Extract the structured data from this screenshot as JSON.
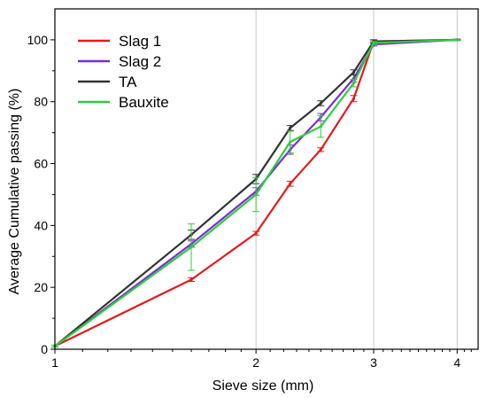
{
  "chart_data": {
    "type": "line",
    "xlabel": "Sieve size (mm)",
    "ylabel": "Average Cumulative passing (%)",
    "x_scale": "log",
    "xlim": [
      1,
      4.3
    ],
    "ylim": [
      0,
      110
    ],
    "x_ticks": [
      1,
      2,
      3,
      4
    ],
    "y_ticks": [
      0,
      20,
      40,
      60,
      80,
      100
    ],
    "vertical_gridlines_at": [
      2,
      3,
      4
    ],
    "legend_position": "top-left",
    "series": [
      {
        "name": "Slag 1",
        "color": "#e41a1c",
        "x": [
          1,
          1.6,
          2,
          2.25,
          2.5,
          2.8,
          3,
          4
        ],
        "y": [
          1,
          22.5,
          37.5,
          53.5,
          64.5,
          81,
          99.5,
          100
        ],
        "err": [
          0.3,
          0.6,
          0.6,
          0.8,
          0.6,
          1.0,
          0.5,
          0.2
        ]
      },
      {
        "name": "Slag 2",
        "color": "#7b2fcf",
        "x": [
          1,
          1.6,
          2,
          2.25,
          2.5,
          2.8,
          3,
          4
        ],
        "y": [
          1,
          34,
          51,
          64.5,
          75,
          87.5,
          98.5,
          100
        ],
        "err": [
          0.3,
          1.0,
          1.2,
          1.5,
          1.2,
          1.2,
          0.5,
          0.2
        ]
      },
      {
        "name": "TA",
        "color": "#333333",
        "x": [
          1,
          1.6,
          2,
          2.25,
          2.5,
          2.8,
          3,
          4
        ],
        "y": [
          1,
          37,
          55,
          71.5,
          79.5,
          89.5,
          99.5,
          100
        ],
        "err": [
          0.3,
          1.5,
          1.5,
          0.8,
          0.8,
          0.8,
          0.5,
          0.2
        ]
      },
      {
        "name": "Bauxite",
        "color": "#2ecc40",
        "x": [
          1,
          1.6,
          2,
          2.25,
          2.5,
          2.8,
          3,
          4
        ],
        "y": [
          1,
          33,
          50,
          67,
          72,
          86,
          99,
          100
        ],
        "err": [
          0.3,
          7.5,
          5.5,
          3.5,
          3.5,
          1.2,
          0.5,
          0.2
        ]
      }
    ]
  }
}
